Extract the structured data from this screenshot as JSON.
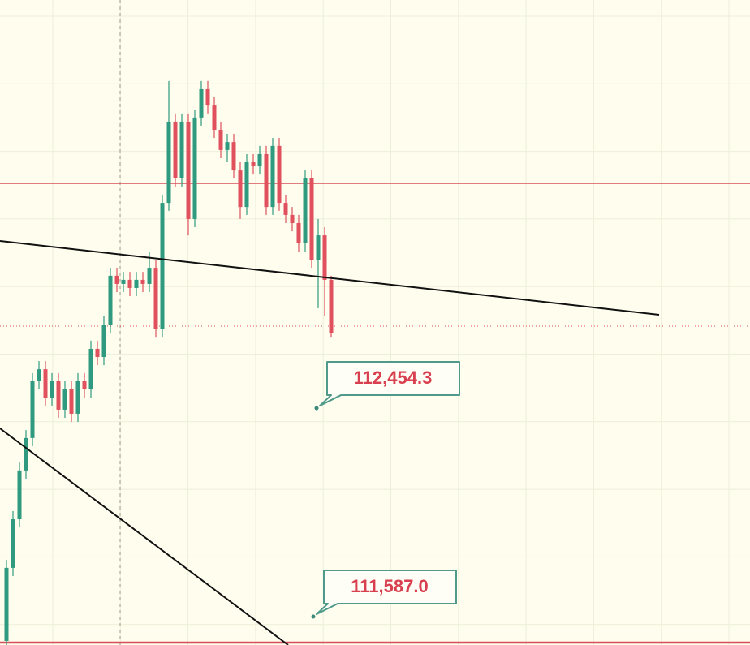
{
  "chart_data": {
    "type": "candlestick",
    "ylim": [
      111469,
      114152
    ],
    "colors": {
      "up": "#2f9a7f",
      "down": "#e0505d"
    },
    "series": [
      {
        "open": [
          111486,
          111790,
          111992,
          112195,
          112330,
          112566,
          112616,
          112498,
          112566,
          112448,
          112532,
          112431,
          112566,
          112532,
          112701,
          112667,
          112802,
          113005,
          112971,
          112988,
          112954,
          112988,
          112971,
          113038,
          112785,
          113308,
          113646,
          113410,
          113646,
          113241,
          113663,
          113781,
          113713,
          113612,
          113528,
          113561,
          113443,
          113291,
          113477,
          113460,
          113511,
          113291,
          113545,
          113308,
          113258,
          113224,
          113140,
          113410,
          113072,
          113173,
          112988
        ],
        "high": [
          111823,
          112026,
          112228,
          112363,
          112600,
          112650,
          112650,
          112600,
          112600,
          112566,
          112566,
          112600,
          112600,
          112735,
          112735,
          112836,
          113038,
          113038,
          113021,
          113021,
          113021,
          113021,
          113106,
          113072,
          113342,
          113815,
          113680,
          113680,
          113680,
          113696,
          113815,
          113815,
          113747,
          113646,
          113595,
          113595,
          113477,
          113511,
          113511,
          113545,
          113545,
          113578,
          113578,
          113342,
          113291,
          113258,
          113443,
          113443,
          113241,
          113207,
          113005
        ],
        "low": [
          111469,
          111756,
          111958,
          112161,
          112296,
          112532,
          112465,
          112465,
          112414,
          112414,
          112397,
          112397,
          112498,
          112498,
          112633,
          112633,
          112768,
          112937,
          112937,
          112920,
          112920,
          112937,
          112937,
          112751,
          112751,
          113275,
          113376,
          113376,
          113173,
          113207,
          113629,
          113680,
          113578,
          113494,
          113477,
          113410,
          113241,
          113258,
          113426,
          113426,
          113258,
          113258,
          113275,
          113224,
          113190,
          113106,
          113106,
          113038,
          112870,
          112836,
          112751
        ],
        "close": [
          111790,
          111992,
          112195,
          112330,
          112566,
          112616,
          112498,
          112566,
          112448,
          112532,
          112431,
          112566,
          112532,
          112701,
          112667,
          112802,
          113005,
          112971,
          112988,
          112954,
          112988,
          112971,
          113038,
          112785,
          113308,
          113646,
          113410,
          113646,
          113241,
          113663,
          113781,
          113713,
          113612,
          113528,
          113561,
          113443,
          113291,
          113477,
          113460,
          113511,
          113291,
          113545,
          113308,
          113258,
          113224,
          113140,
          113410,
          113072,
          113173,
          112988,
          112768
        ]
      }
    ],
    "callouts": [
      {
        "value": 112454.3,
        "label": "112,454.3"
      },
      {
        "value": 111587.0,
        "label": "111,587.0"
      }
    ]
  }
}
